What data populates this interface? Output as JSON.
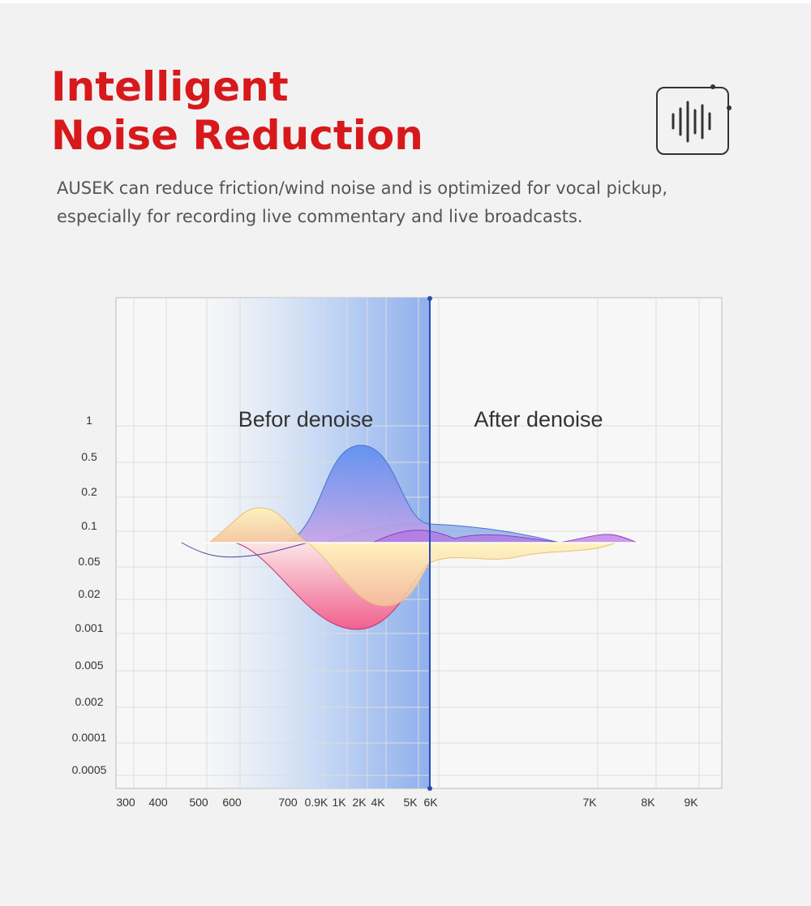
{
  "header": {
    "title_lines": [
      "Intelligent",
      "Noise Reduction"
    ],
    "description_lines": [
      "AUSEK can reduce friction/wind noise and is optimized for vocal pickup,",
      "especially for recording live commentary and live broadcasts."
    ]
  },
  "chart": {
    "regions": [
      "Befor denoise",
      "After denoise"
    ],
    "y_labels": [
      "1",
      "0.5",
      "0.2",
      "0.1",
      "0.05",
      "0.02",
      "0.001",
      "0.005",
      "0.002",
      "0.0001",
      "0.0005"
    ],
    "x_labels": [
      "300",
      "400",
      "500",
      "600",
      "700",
      "0.9K",
      "1K",
      "2K",
      "4K",
      "5K",
      "6K",
      "7K",
      "8K",
      "9K"
    ]
  }
}
